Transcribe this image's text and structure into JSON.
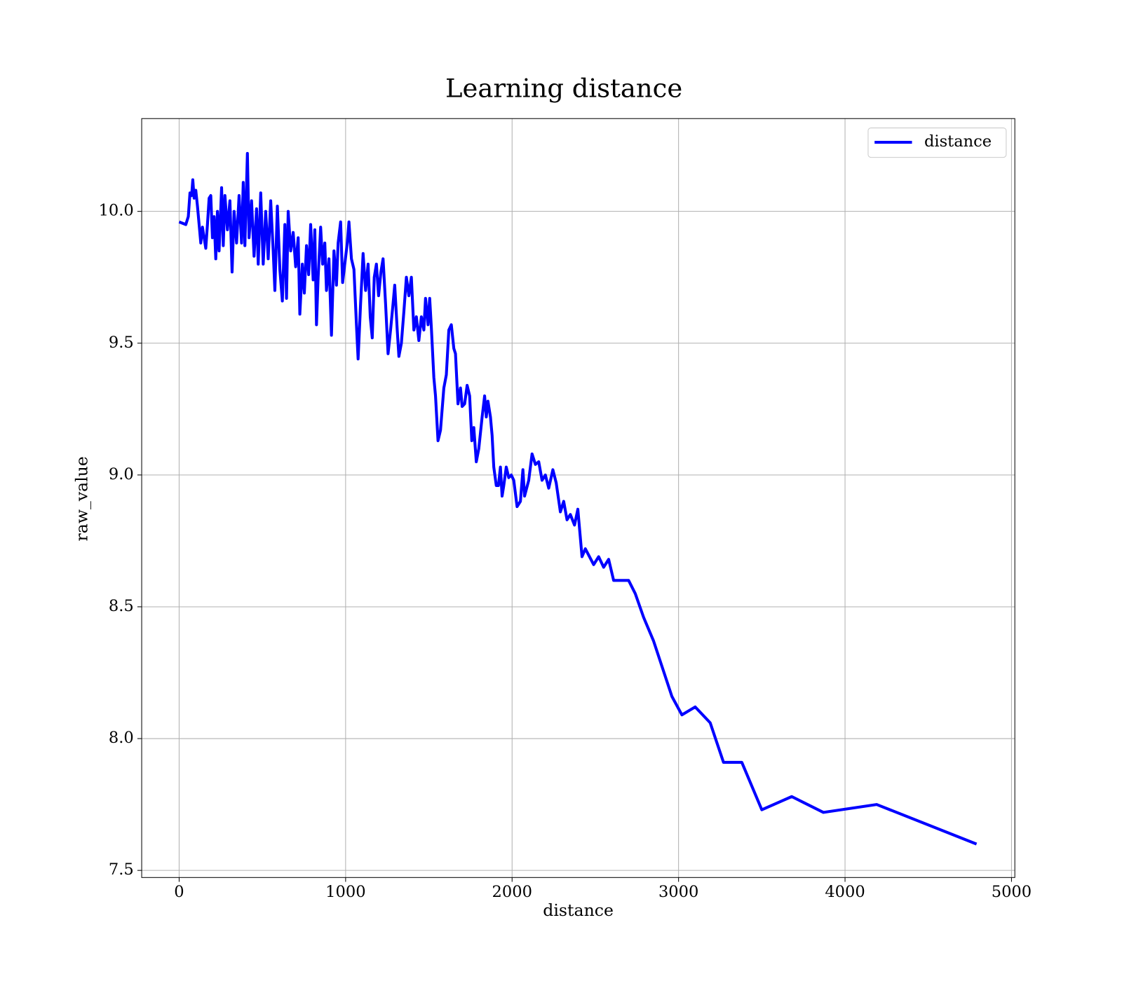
{
  "chart_data": {
    "type": "line",
    "title": "Learning distance",
    "xlabel": "distance",
    "ylabel": "raw_value",
    "x": [
      0,
      40,
      55,
      65,
      75,
      82,
      90,
      100,
      110,
      120,
      130,
      140,
      150,
      160,
      170,
      180,
      190,
      200,
      210,
      220,
      230,
      240,
      255,
      265,
      275,
      290,
      305,
      318,
      330,
      345,
      360,
      375,
      385,
      395,
      410,
      420,
      435,
      450,
      465,
      475,
      490,
      505,
      520,
      535,
      550,
      565,
      575,
      590,
      605,
      620,
      635,
      645,
      655,
      670,
      685,
      700,
      715,
      725,
      740,
      752,
      765,
      778,
      790,
      805,
      815,
      825,
      835,
      850,
      862,
      875,
      885,
      900,
      915,
      930,
      945,
      955,
      970,
      982,
      995,
      1010,
      1020,
      1035,
      1050,
      1065,
      1075,
      1090,
      1105,
      1120,
      1135,
      1148,
      1160,
      1172,
      1185,
      1198,
      1212,
      1225,
      1240,
      1255,
      1270,
      1285,
      1295,
      1310,
      1320,
      1335,
      1350,
      1365,
      1380,
      1395,
      1410,
      1425,
      1440,
      1455,
      1470,
      1480,
      1495,
      1505,
      1515,
      1530,
      1540,
      1555,
      1570,
      1590,
      1605,
      1620,
      1635,
      1650,
      1660,
      1675,
      1690,
      1700,
      1715,
      1730,
      1745,
      1758,
      1770,
      1785,
      1800,
      1820,
      1835,
      1845,
      1855,
      1870,
      1880,
      1890,
      1905,
      1918,
      1930,
      1940,
      1950,
      1965,
      1980,
      1995,
      2010,
      2030,
      2050,
      2065,
      2075,
      2100,
      2120,
      2140,
      2160,
      2180,
      2200,
      2220,
      2245,
      2265,
      2290,
      2310,
      2330,
      2350,
      2375,
      2395,
      2420,
      2440,
      2490,
      2520,
      2550,
      2580,
      2610,
      2660,
      2700,
      2740,
      2790,
      2850,
      2960,
      3020,
      3100,
      3190,
      3270,
      3380,
      3500,
      3680,
      3870,
      4190,
      4790
    ],
    "series": [
      {
        "name": "distance",
        "color": "#0000ff",
        "values": [
          9.96,
          9.95,
          9.98,
          10.07,
          10.06,
          10.12,
          10.05,
          10.08,
          10.02,
          9.95,
          9.88,
          9.94,
          9.9,
          9.86,
          9.95,
          10.05,
          10.06,
          9.9,
          9.98,
          9.82,
          10.0,
          9.85,
          10.09,
          9.87,
          10.06,
          9.93,
          10.04,
          9.77,
          10.0,
          9.88,
          10.06,
          9.88,
          10.11,
          9.87,
          10.22,
          9.9,
          10.04,
          9.83,
          10.01,
          9.8,
          10.07,
          9.8,
          10.0,
          9.82,
          10.04,
          9.85,
          9.7,
          10.02,
          9.78,
          9.66,
          9.95,
          9.67,
          10.0,
          9.85,
          9.92,
          9.79,
          9.9,
          9.61,
          9.8,
          9.69,
          9.87,
          9.76,
          9.95,
          9.74,
          9.93,
          9.57,
          9.75,
          9.94,
          9.8,
          9.88,
          9.7,
          9.82,
          9.53,
          9.85,
          9.72,
          9.88,
          9.96,
          9.73,
          9.8,
          9.88,
          9.96,
          9.82,
          9.78,
          9.57,
          9.44,
          9.65,
          9.84,
          9.7,
          9.8,
          9.6,
          9.52,
          9.75,
          9.8,
          9.68,
          9.77,
          9.82,
          9.65,
          9.46,
          9.55,
          9.65,
          9.72,
          9.55,
          9.45,
          9.5,
          9.62,
          9.75,
          9.68,
          9.75,
          9.55,
          9.6,
          9.51,
          9.6,
          9.55,
          9.67,
          9.57,
          9.67,
          9.56,
          9.37,
          9.3,
          9.13,
          9.17,
          9.33,
          9.38,
          9.55,
          9.57,
          9.48,
          9.46,
          9.27,
          9.33,
          9.26,
          9.27,
          9.34,
          9.3,
          9.13,
          9.18,
          9.05,
          9.1,
          9.22,
          9.3,
          9.22,
          9.28,
          9.22,
          9.15,
          9.03,
          8.96,
          8.96,
          9.03,
          8.92,
          8.96,
          9.03,
          8.99,
          9.0,
          8.98,
          8.88,
          8.9,
          9.02,
          8.92,
          8.98,
          9.08,
          9.04,
          9.05,
          8.98,
          9.0,
          8.95,
          9.02,
          8.97,
          8.86,
          8.9,
          8.83,
          8.85,
          8.81,
          8.87,
          8.69,
          8.72,
          8.66,
          8.69,
          8.65,
          8.68,
          8.6,
          8.6,
          8.6,
          8.55,
          8.46,
          8.37,
          8.16,
          8.09,
          8.12,
          8.06,
          7.91,
          7.91,
          7.73,
          7.78,
          7.72,
          7.75,
          7.6
        ]
      }
    ],
    "xlim": [
      -225,
      5020
    ],
    "ylim": [
      7.473,
      10.352
    ],
    "xticks": [
      0,
      1000,
      2000,
      3000,
      4000,
      5000
    ],
    "yticks": [
      7.5,
      {
        "value": 8,
        "label": "8.0"
      },
      8.5,
      {
        "value": 9,
        "label": "9.0"
      },
      9.5,
      {
        "value": 10,
        "label": "10.0"
      }
    ],
    "grid": true,
    "legend": "upper right"
  }
}
